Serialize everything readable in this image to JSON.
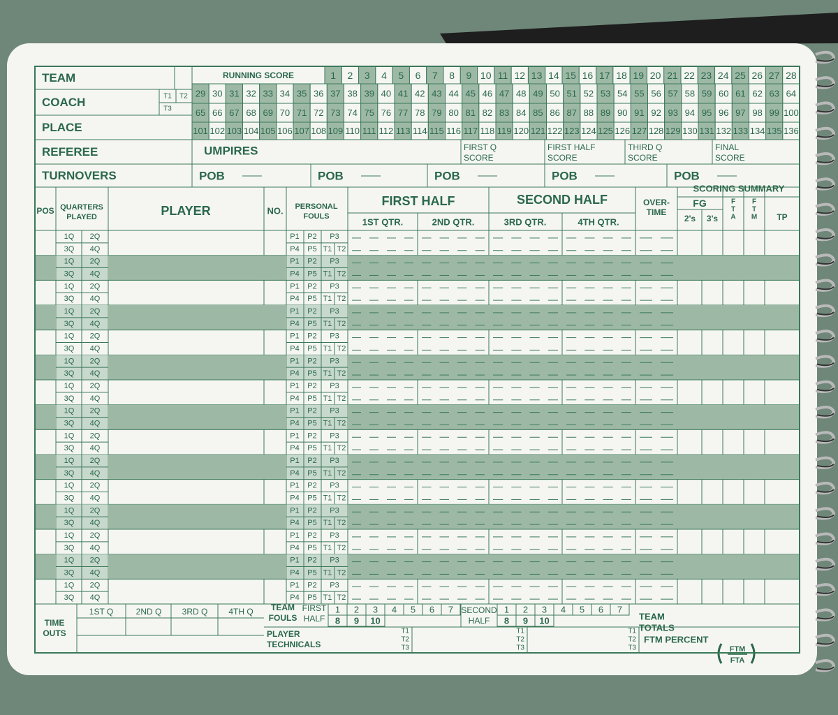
{
  "header": {
    "team": "TEAM",
    "coach": "COACH",
    "place": "PLACE",
    "referee": "REFEREE",
    "turnovers": "TURNOVERS",
    "coach_technicals": [
      "T1",
      "T2",
      "T3"
    ],
    "umpires": "UMPIRES",
    "pob": "POB"
  },
  "running_score": {
    "label": "RUNNING SCORE",
    "numbers": [
      1,
      2,
      3,
      4,
      5,
      6,
      7,
      8,
      9,
      10,
      11,
      12,
      13,
      14,
      15,
      16,
      17,
      18,
      19,
      20,
      21,
      22,
      23,
      24,
      25,
      26,
      27,
      28,
      29,
      30,
      31,
      32,
      33,
      34,
      35,
      36,
      37,
      38,
      39,
      40,
      41,
      42,
      43,
      44,
      45,
      46,
      47,
      48,
      49,
      50,
      51,
      52,
      53,
      54,
      55,
      56,
      57,
      58,
      59,
      60,
      61,
      62,
      63,
      64,
      65,
      66,
      67,
      68,
      69,
      70,
      71,
      72,
      73,
      74,
      75,
      76,
      77,
      78,
      79,
      80,
      81,
      82,
      83,
      84,
      85,
      86,
      87,
      88,
      89,
      90,
      91,
      92,
      93,
      94,
      95,
      96,
      97,
      98,
      99,
      100,
      101,
      102,
      103,
      104,
      105,
      106,
      107,
      108,
      109,
      110,
      111,
      112,
      113,
      114,
      115,
      116,
      117,
      118,
      119,
      120,
      121,
      122,
      123,
      124,
      125,
      126,
      127,
      128,
      129,
      130,
      131,
      132,
      133,
      134,
      135,
      136
    ]
  },
  "period_scores": {
    "periods": [
      "FIRST Q",
      "FIRST HALF",
      "THIRD Q",
      "FINAL"
    ],
    "word": "SCORE"
  },
  "columns": {
    "pos": "POS",
    "quarters_played": [
      "QUARTERS",
      "PLAYED"
    ],
    "player": "PLAYER",
    "no": "NO.",
    "personal_fouls": [
      "PERSONAL",
      "FOULS"
    ],
    "first_half": "FIRST HALF",
    "second_half": "SECOND HALF",
    "quarters": [
      "1ST QTR.",
      "2ND QTR.",
      "3RD QTR.",
      "4TH QTR."
    ],
    "overtime": [
      "OVER-",
      "TIME"
    ],
    "scoring_summary": "SCORING SUMMARY",
    "fg": "FG",
    "twos": "2's",
    "threes": "3's",
    "fta": [
      "F",
      "T",
      "A"
    ],
    "ftm": [
      "F",
      "T",
      "M"
    ],
    "tp": "TP"
  },
  "rows": {
    "quarters": [
      "1Q",
      "2Q",
      "3Q",
      "4Q"
    ],
    "fouls": [
      "P1",
      "P2",
      "P3",
      "P4",
      "P5",
      "T1",
      "T2"
    ]
  },
  "footer": {
    "time_outs": [
      "TIME",
      "OUTS"
    ],
    "quarters": [
      "1ST Q",
      "2ND Q",
      "3RD Q",
      "4TH Q"
    ],
    "team_fouls": [
      "TEAM",
      "FOULS"
    ],
    "first_half": [
      "FIRST",
      "HALF"
    ],
    "second_half": [
      "SECOND",
      "HALF"
    ],
    "foul_numbers": [
      1,
      2,
      3,
      4,
      5,
      6,
      7,
      8,
      9,
      10
    ],
    "team_totals": [
      "TEAM",
      "TOTALS"
    ],
    "player_technicals": [
      "PLAYER",
      "TECHNICALS"
    ],
    "technicals": [
      "T1",
      "T2",
      "T3"
    ],
    "ftm_percent": "FTM PERCENT",
    "fraction": {
      "num": "FTM",
      "den": "FTA"
    }
  }
}
